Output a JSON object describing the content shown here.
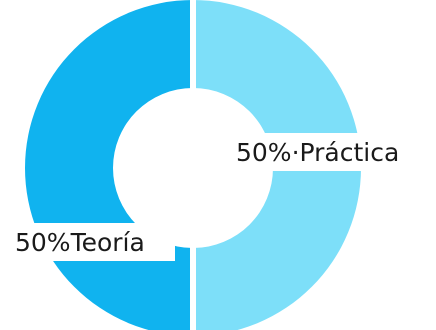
{
  "chart_data": {
    "type": "pie",
    "donut": true,
    "slices": [
      {
        "label": "50%·Práctica",
        "value": 50,
        "color": "#7ddff9"
      },
      {
        "label": "50%Teoría",
        "value": 50,
        "color": "#10b3ef"
      }
    ]
  }
}
